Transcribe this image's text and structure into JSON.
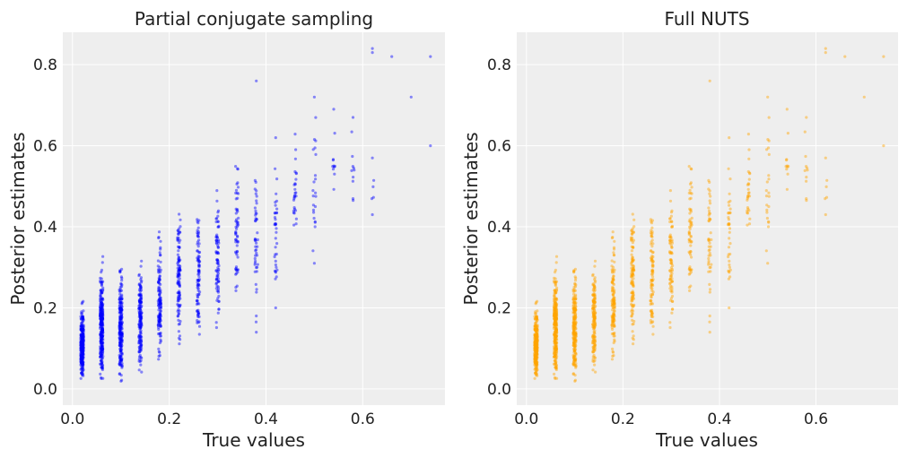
{
  "chart_data": [
    {
      "type": "scatter",
      "title": "Partial conjugate sampling",
      "xlabel": "True values",
      "ylabel": "Posterior estimates",
      "xlim": [
        -0.02,
        0.77
      ],
      "ylim": [
        -0.04,
        0.88
      ],
      "xticks": [
        0.0,
        0.2,
        0.4,
        0.6
      ],
      "xtick_labels": [
        "0.0",
        "0.2",
        "0.4",
        "0.6"
      ],
      "yticks": [
        0.0,
        0.2,
        0.4,
        0.6,
        0.8
      ],
      "ytick_labels": [
        "0.0",
        "0.2",
        "0.4",
        "0.6",
        "0.8"
      ],
      "grid": true,
      "marker_color": "#0000ff",
      "marker_alpha": 0.45,
      "columns": [
        {
          "x": 0.02,
          "n": 320,
          "ymin": 0.0,
          "ymax": 0.24
        },
        {
          "x": 0.06,
          "n": 280,
          "ymin": 0.0,
          "ymax": 0.35
        },
        {
          "x": 0.1,
          "n": 220,
          "ymin": 0.0,
          "ymax": 0.34
        },
        {
          "x": 0.14,
          "n": 160,
          "ymin": 0.02,
          "ymax": 0.36
        },
        {
          "x": 0.18,
          "n": 130,
          "ymin": 0.04,
          "ymax": 0.42
        },
        {
          "x": 0.22,
          "n": 110,
          "ymin": 0.07,
          "ymax": 0.51
        },
        {
          "x": 0.26,
          "n": 90,
          "ymin": 0.1,
          "ymax": 0.52
        },
        {
          "x": 0.3,
          "n": 80,
          "ymin": 0.12,
          "ymax": 0.55
        },
        {
          "x": 0.34,
          "n": 60,
          "ymin": 0.17,
          "ymax": 0.61
        },
        {
          "x": 0.38,
          "n": 45,
          "ymin": 0.15,
          "ymax": 0.62
        },
        {
          "x": 0.42,
          "n": 35,
          "ymin": 0.2,
          "ymax": 0.62
        },
        {
          "x": 0.46,
          "n": 28,
          "ymin": 0.35,
          "ymax": 0.65
        },
        {
          "x": 0.5,
          "n": 22,
          "ymin": 0.31,
          "ymax": 0.72
        },
        {
          "x": 0.54,
          "n": 10,
          "ymin": 0.46,
          "ymax": 0.69
        },
        {
          "x": 0.58,
          "n": 10,
          "ymin": 0.42,
          "ymax": 0.67
        },
        {
          "x": 0.62,
          "n": 4,
          "ymin": 0.43,
          "ymax": 0.58
        }
      ],
      "points": [
        {
          "x": 0.38,
          "y": 0.76
        },
        {
          "x": 0.42,
          "y": 0.62
        },
        {
          "x": 0.62,
          "y": 0.83
        },
        {
          "x": 0.62,
          "y": 0.84
        },
        {
          "x": 0.66,
          "y": 0.82
        },
        {
          "x": 0.7,
          "y": 0.72
        },
        {
          "x": 0.74,
          "y": 0.82
        },
        {
          "x": 0.74,
          "y": 0.6
        },
        {
          "x": 0.5,
          "y": 0.72
        },
        {
          "x": 0.54,
          "y": 0.69
        },
        {
          "x": 0.58,
          "y": 0.67
        },
        {
          "x": 0.62,
          "y": 0.57
        },
        {
          "x": 0.62,
          "y": 0.43
        },
        {
          "x": 0.5,
          "y": 0.31
        },
        {
          "x": 0.42,
          "y": 0.2
        },
        {
          "x": 0.38,
          "y": 0.18
        },
        {
          "x": 0.38,
          "y": 0.14
        }
      ]
    },
    {
      "type": "scatter",
      "title": "Full NUTS",
      "xlabel": "True values",
      "ylabel": "Posterior estimates",
      "xlim": [
        -0.02,
        0.77
      ],
      "ylim": [
        -0.04,
        0.88
      ],
      "xticks": [
        0.0,
        0.2,
        0.4,
        0.6
      ],
      "xtick_labels": [
        "0.0",
        "0.2",
        "0.4",
        "0.6"
      ],
      "yticks": [
        0.0,
        0.2,
        0.4,
        0.6,
        0.8
      ],
      "ytick_labels": [
        "0.0",
        "0.2",
        "0.4",
        "0.6",
        "0.8"
      ],
      "grid": true,
      "marker_color": "#ffa500",
      "marker_alpha": 0.45,
      "columns": [
        {
          "x": 0.02,
          "n": 320,
          "ymin": 0.0,
          "ymax": 0.24
        },
        {
          "x": 0.06,
          "n": 280,
          "ymin": 0.0,
          "ymax": 0.35
        },
        {
          "x": 0.1,
          "n": 220,
          "ymin": 0.0,
          "ymax": 0.34
        },
        {
          "x": 0.14,
          "n": 160,
          "ymin": 0.02,
          "ymax": 0.36
        },
        {
          "x": 0.18,
          "n": 130,
          "ymin": 0.04,
          "ymax": 0.42
        },
        {
          "x": 0.22,
          "n": 110,
          "ymin": 0.07,
          "ymax": 0.51
        },
        {
          "x": 0.26,
          "n": 90,
          "ymin": 0.1,
          "ymax": 0.52
        },
        {
          "x": 0.3,
          "n": 80,
          "ymin": 0.12,
          "ymax": 0.55
        },
        {
          "x": 0.34,
          "n": 60,
          "ymin": 0.17,
          "ymax": 0.61
        },
        {
          "x": 0.38,
          "n": 45,
          "ymin": 0.15,
          "ymax": 0.62
        },
        {
          "x": 0.42,
          "n": 35,
          "ymin": 0.2,
          "ymax": 0.62
        },
        {
          "x": 0.46,
          "n": 28,
          "ymin": 0.35,
          "ymax": 0.65
        },
        {
          "x": 0.5,
          "n": 22,
          "ymin": 0.31,
          "ymax": 0.72
        },
        {
          "x": 0.54,
          "n": 10,
          "ymin": 0.46,
          "ymax": 0.69
        },
        {
          "x": 0.58,
          "n": 10,
          "ymin": 0.42,
          "ymax": 0.67
        },
        {
          "x": 0.62,
          "n": 4,
          "ymin": 0.43,
          "ymax": 0.58
        }
      ],
      "points": [
        {
          "x": 0.38,
          "y": 0.76
        },
        {
          "x": 0.42,
          "y": 0.62
        },
        {
          "x": 0.62,
          "y": 0.83
        },
        {
          "x": 0.62,
          "y": 0.84
        },
        {
          "x": 0.66,
          "y": 0.82
        },
        {
          "x": 0.7,
          "y": 0.72
        },
        {
          "x": 0.74,
          "y": 0.82
        },
        {
          "x": 0.74,
          "y": 0.6
        },
        {
          "x": 0.5,
          "y": 0.72
        },
        {
          "x": 0.54,
          "y": 0.69
        },
        {
          "x": 0.58,
          "y": 0.67
        },
        {
          "x": 0.62,
          "y": 0.57
        },
        {
          "x": 0.62,
          "y": 0.43
        },
        {
          "x": 0.5,
          "y": 0.31
        },
        {
          "x": 0.42,
          "y": 0.2
        },
        {
          "x": 0.38,
          "y": 0.18
        },
        {
          "x": 0.38,
          "y": 0.14
        }
      ]
    }
  ]
}
